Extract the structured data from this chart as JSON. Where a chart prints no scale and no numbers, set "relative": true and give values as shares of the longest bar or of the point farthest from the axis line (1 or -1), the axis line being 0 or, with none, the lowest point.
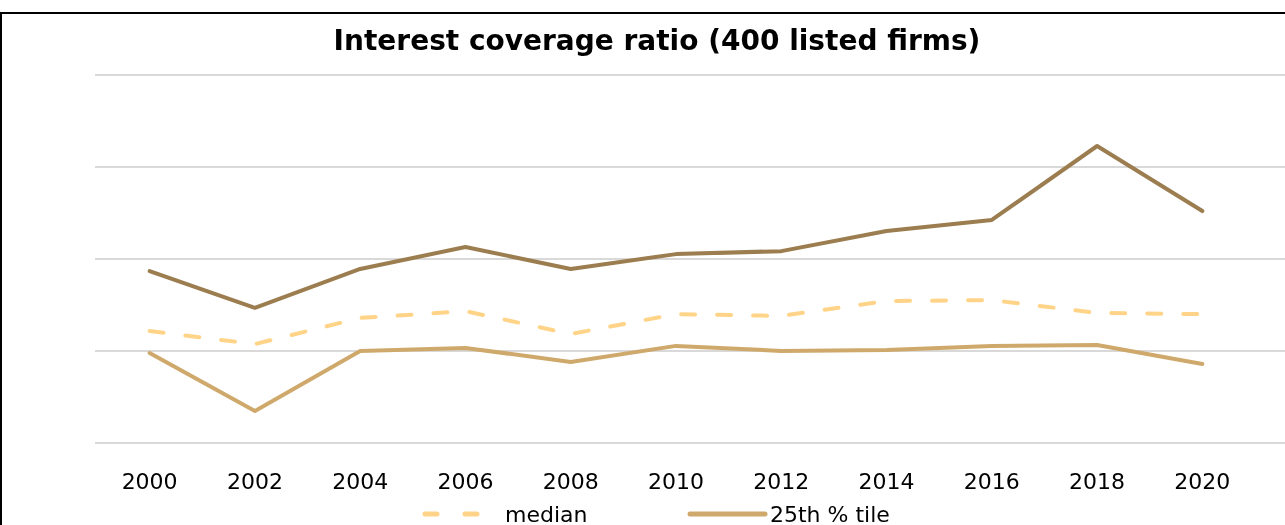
{
  "chart_data": {
    "type": "line",
    "title": "Interest coverage ratio (400 listed firms)",
    "relative": true,
    "grid": "y",
    "legend": "bottom",
    "categories": [
      "2000",
      "2002",
      "2004",
      "2006",
      "2008",
      "2010",
      "2012",
      "2014",
      "2016",
      "2018",
      "2020"
    ],
    "series": [
      {
        "name": "median",
        "color": "#ffd488",
        "line_style": "dashed",
        "values": [
          0.377,
          0.333,
          0.421,
          0.444,
          0.367,
          0.434,
          0.428,
          0.478,
          0.481,
          0.438,
          0.434
        ]
      },
      {
        "name": "25th % tile",
        "color": "#cfa96b",
        "line_style": "solid",
        "values": [
          0.303,
          0.108,
          0.31,
          0.32,
          0.273,
          0.327,
          0.31,
          0.313,
          0.327,
          0.33,
          0.266
        ]
      },
      {
        "color": "#9b7d4f",
        "line_style": "solid",
        "values": [
          0.579,
          0.455,
          0.586,
          0.66,
          0.586,
          0.636,
          0.646,
          0.714,
          0.751,
          1,
          0.781
        ]
      }
    ]
  }
}
